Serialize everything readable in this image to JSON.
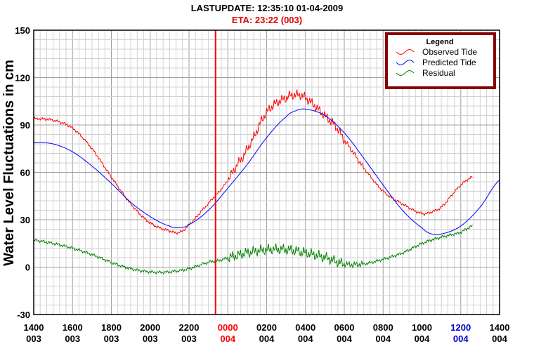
{
  "header": {
    "last_update": "LASTUPDATE: 12:35:10  01-04-2009",
    "eta": "ETA: 23:22 (003)"
  },
  "colors": {
    "observed": "#ff0000",
    "predicted": "#0000ff",
    "residual": "#008000",
    "marker": "#ff0000",
    "legend_border": "#8b0000",
    "current_tick": "#ff0000",
    "highlight_tick": "#0000cc"
  },
  "chart_data": {
    "type": "line",
    "ylabel": "Water Level Fluctuations in cm",
    "xlabel": "",
    "ylim": [
      -30,
      150
    ],
    "yticks": [
      -30,
      0,
      30,
      60,
      90,
      120,
      150
    ],
    "grid": true,
    "legend": {
      "title": "Legend",
      "placement": "top-right",
      "entries": [
        "Observed Tide",
        "Predicted Tide",
        "Residual"
      ]
    },
    "x_unit": "hours from 1400 day 003",
    "xlim": [
      0,
      24
    ],
    "x_ticks": [
      {
        "x": 0,
        "time": "1400",
        "day": "003",
        "style": "normal"
      },
      {
        "x": 2,
        "time": "1600",
        "day": "003",
        "style": "normal"
      },
      {
        "x": 4,
        "time": "1800",
        "day": "003",
        "style": "normal"
      },
      {
        "x": 6,
        "time": "2000",
        "day": "003",
        "style": "normal"
      },
      {
        "x": 8,
        "time": "2200",
        "day": "003",
        "style": "normal"
      },
      {
        "x": 10,
        "time": "0000",
        "day": "004",
        "style": "current"
      },
      {
        "x": 12,
        "time": "0200",
        "day": "004",
        "style": "normal"
      },
      {
        "x": 14,
        "time": "0400",
        "day": "004",
        "style": "normal"
      },
      {
        "x": 16,
        "time": "0600",
        "day": "004",
        "style": "normal"
      },
      {
        "x": 18,
        "time": "0800",
        "day": "004",
        "style": "normal"
      },
      {
        "x": 20,
        "time": "1000",
        "day": "004",
        "style": "normal"
      },
      {
        "x": 22,
        "time": "1200",
        "day": "004",
        "style": "highlight"
      },
      {
        "x": 24,
        "time": "1400",
        "day": "004",
        "style": "normal"
      }
    ],
    "marker_x": 9.37,
    "series": [
      {
        "name": "Observed Tide",
        "color": "#ff0000",
        "x": [
          0,
          1,
          2,
          3,
          4,
          5,
          6,
          7,
          7.5,
          8,
          9,
          9.5,
          10,
          10.5,
          11,
          12,
          13,
          13.5,
          14,
          15,
          15.5,
          16,
          17,
          18,
          19,
          20,
          20.5,
          21,
          21.5,
          22,
          22.6
        ],
        "y": [
          94,
          93,
          88,
          75,
          57,
          40,
          28,
          23,
          22,
          27,
          40,
          47,
          55,
          65,
          75,
          98,
          107,
          109,
          107,
          96,
          90,
          80,
          63,
          48,
          40,
          34,
          35,
          38,
          45,
          52,
          57
        ]
      },
      {
        "name": "Predicted Tide",
        "color": "#0000ff",
        "x": [
          0,
          1,
          2,
          3,
          4,
          5,
          6,
          7,
          7.5,
          8,
          9,
          10,
          11,
          12,
          13,
          13.5,
          14,
          15,
          16,
          17,
          18,
          19,
          20,
          20.5,
          21,
          22,
          23,
          24
        ],
        "y": [
          79,
          78,
          73,
          64,
          53,
          41,
          32,
          26,
          25,
          27,
          36,
          50,
          65,
          82,
          95,
          99,
          100,
          96,
          85,
          69,
          52,
          36,
          25,
          21,
          21,
          26,
          38,
          55
        ]
      },
      {
        "name": "Residual",
        "color": "#008000",
        "x": [
          0,
          1,
          2,
          3,
          4,
          5,
          6,
          7,
          8,
          9,
          9.5,
          10,
          11,
          12,
          13,
          14,
          15,
          16,
          17,
          18,
          19,
          20,
          21,
          22,
          22.6
        ],
        "y": [
          17,
          15,
          12,
          8,
          3,
          -1,
          -3,
          -3,
          -1,
          3,
          4,
          6,
          9,
          11,
          11,
          9,
          6,
          2,
          2,
          5,
          9,
          15,
          19,
          22,
          26
        ]
      }
    ]
  }
}
